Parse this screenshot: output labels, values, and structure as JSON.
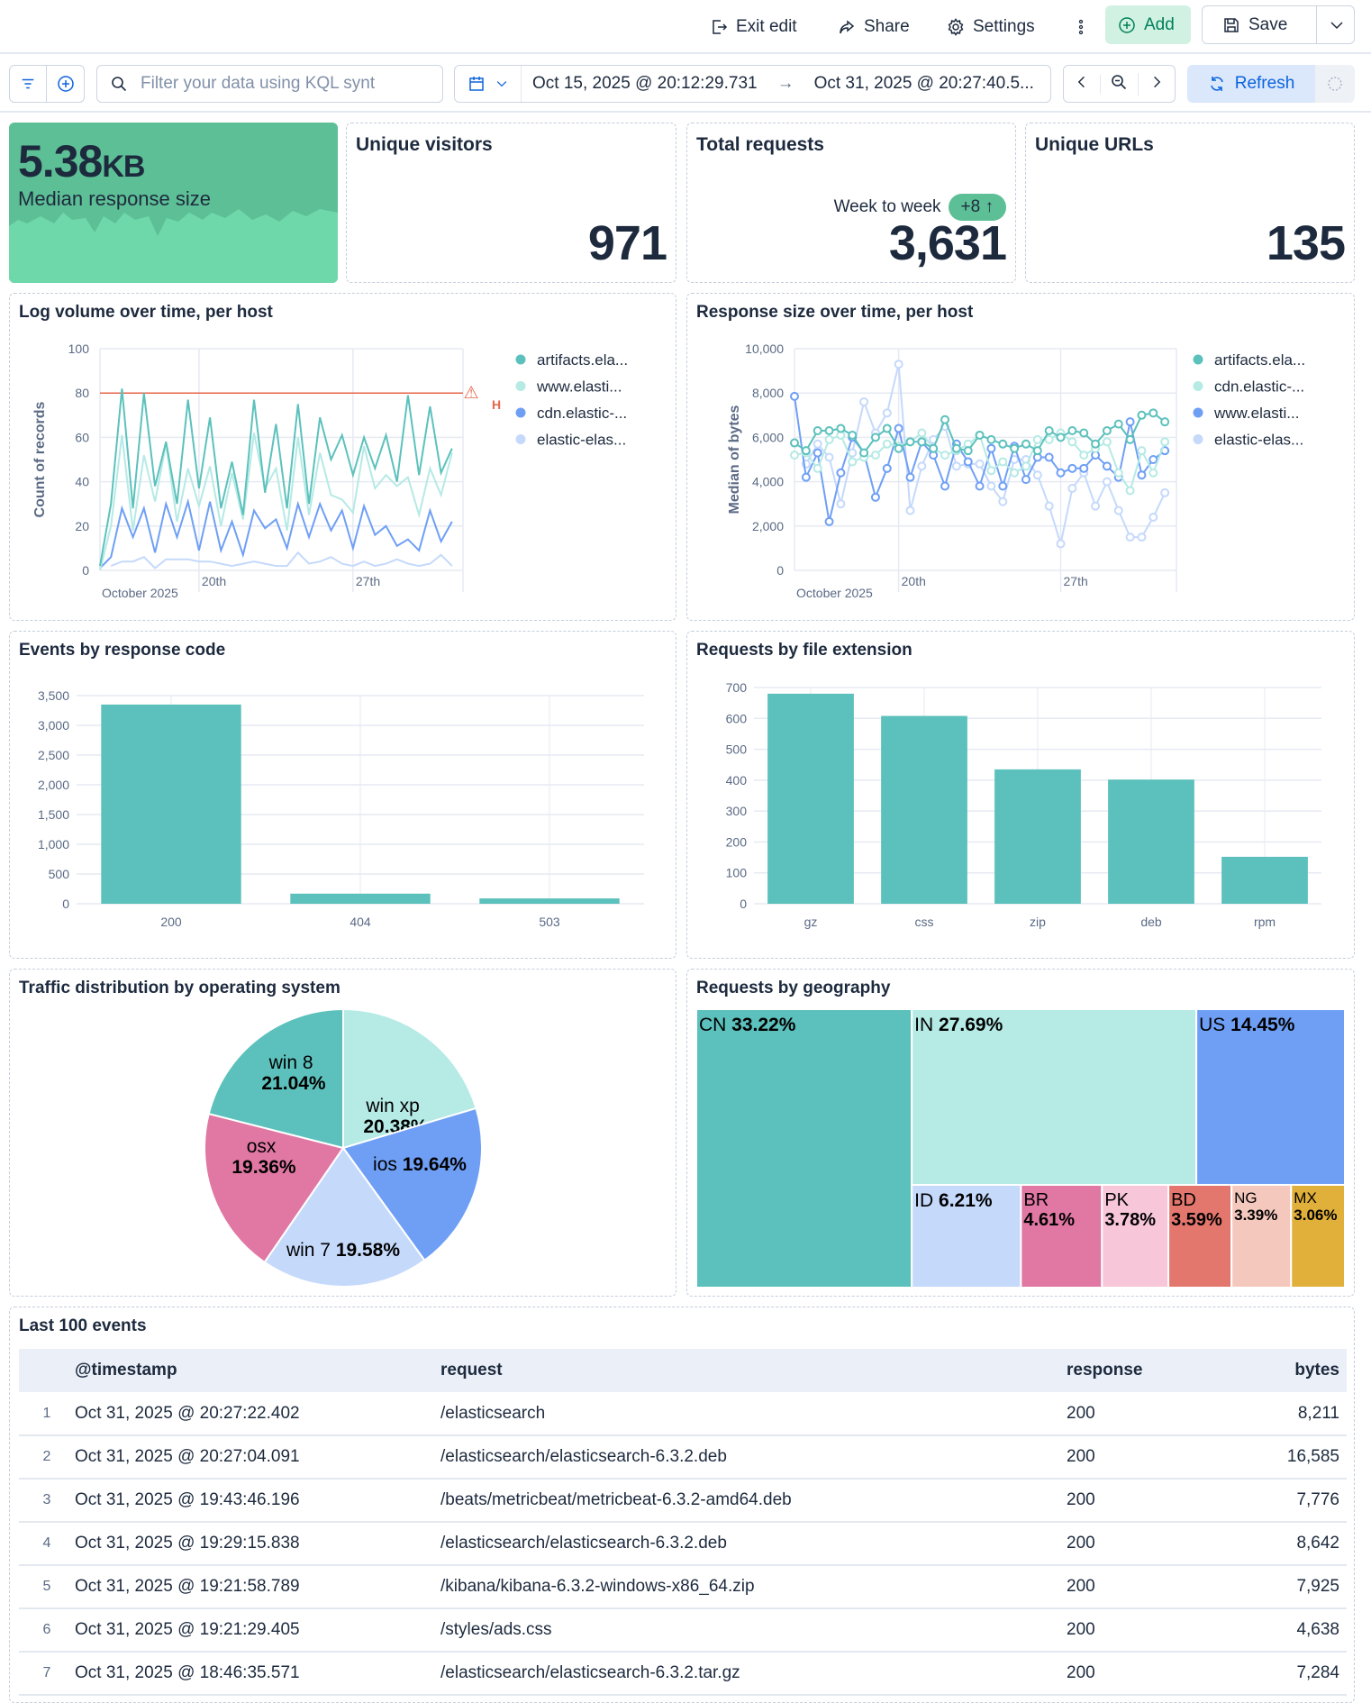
{
  "header": {
    "exit_edit": "Exit edit",
    "share": "Share",
    "settings": "Settings",
    "add": "Add",
    "save": "Save"
  },
  "filter_bar": {
    "query_placeholder": "Filter your data using KQL synt",
    "start": "Oct 15, 2025 @ 20:12:29.731",
    "end": "Oct 31, 2025 @ 20:27:40.5...",
    "refresh": "Refresh"
  },
  "metrics": {
    "median": {
      "value": "5.38",
      "unit": "KB",
      "label": "Median response size",
      "bg": "#5dbf95",
      "area": "#6fd8ab"
    },
    "visitors": {
      "title": "Unique visitors",
      "value": "971"
    },
    "requests": {
      "title": "Total requests",
      "trend_label": "Week to week",
      "trend_badge": "+8 ↑",
      "value": "3,631",
      "badge_color": "#5dbf95"
    },
    "urls": {
      "title": "Unique URLs",
      "value": "135"
    }
  },
  "panels": {
    "log_volume": "Log volume over time, per host",
    "response_size": "Response size over time, per host",
    "response_code": "Events by response code",
    "file_ext": "Requests by file extension",
    "os": "Traffic distribution by operating system",
    "geo": "Requests by geography",
    "events": "Last 100 events"
  },
  "chart_data": [
    {
      "type": "line",
      "title": "Log volume over time, per host",
      "ylabel": "Count of records",
      "ylim": [
        0,
        100
      ],
      "yticks": [
        "0",
        "20",
        "40",
        "60",
        "80",
        "100"
      ],
      "xticks": [
        "20th",
        "27th"
      ],
      "xsublabel": "October 2025",
      "threshold": 80,
      "threshold_color": "#e7664c",
      "x": [
        "2025-10-15 12:00",
        "2025-10-16 00:00",
        "2025-10-16 12:00",
        "2025-10-17 00:00",
        "2025-10-17 12:00",
        "2025-10-18 00:00",
        "2025-10-18 12:00",
        "2025-10-19 00:00",
        "2025-10-19 12:00",
        "2025-10-20 00:00",
        "2025-10-20 12:00",
        "2025-10-21 00:00",
        "2025-10-21 12:00",
        "2025-10-22 00:00",
        "2025-10-22 12:00",
        "2025-10-23 00:00",
        "2025-10-23 12:00",
        "2025-10-24 00:00",
        "2025-10-24 12:00",
        "2025-10-25 00:00",
        "2025-10-25 12:00",
        "2025-10-26 00:00",
        "2025-10-26 12:00",
        "2025-10-27 00:00",
        "2025-10-27 12:00",
        "2025-10-28 00:00",
        "2025-10-28 12:00",
        "2025-10-29 00:00",
        "2025-10-29 12:00",
        "2025-10-30 00:00",
        "2025-10-30 12:00",
        "2025-10-31 00:00",
        "2025-10-31 12:00"
      ],
      "series": [
        {
          "name": "artifacts.ela...",
          "color": "#5cc1bc",
          "values": [
            2,
            30,
            82,
            28,
            80,
            38,
            58,
            30,
            77,
            37,
            69,
            28,
            49,
            25,
            77,
            35,
            66,
            28,
            75,
            30,
            69,
            50,
            61,
            43,
            60,
            46,
            61,
            40,
            79,
            43,
            74,
            44,
            55
          ]
        },
        {
          "name": "www.elasti...",
          "color": "#b5eae5",
          "values": [
            0,
            20,
            61,
            18,
            52,
            31,
            57,
            22,
            46,
            29,
            47,
            20,
            44,
            23,
            62,
            37,
            46,
            18,
            60,
            25,
            53,
            34,
            32,
            26,
            56,
            37,
            43,
            38,
            42,
            25,
            46,
            34,
            53
          ]
        },
        {
          "name": "cdn.elastic-...",
          "color": "#6f9ff5",
          "values": [
            1,
            6,
            28,
            15,
            28,
            8,
            30,
            15,
            31,
            9,
            31,
            9,
            22,
            7,
            27,
            19,
            23,
            10,
            30,
            15,
            30,
            18,
            27,
            10,
            29,
            16,
            20,
            11,
            14,
            9,
            27,
            13,
            22
          ]
        },
        {
          "name": "elastic-elas...",
          "color": "#c5d9fb",
          "values": [
            null,
            2,
            4,
            4,
            6,
            1,
            5,
            5,
            5,
            4,
            4,
            3,
            2,
            3,
            4,
            3,
            2,
            2,
            8,
            3,
            4,
            6,
            3,
            2,
            4,
            2,
            3,
            5,
            3,
            2,
            3,
            7,
            2
          ]
        }
      ]
    },
    {
      "type": "line",
      "title": "Response size over time, per host",
      "ylabel": "Median of bytes",
      "ylim": [
        0,
        10000
      ],
      "yticks": [
        "0",
        "2,000",
        "4,000",
        "6,000",
        "8,000",
        "10,000"
      ],
      "xticks": [
        "20th",
        "27th"
      ],
      "xsublabel": "October 2025",
      "markers": true,
      "series": [
        {
          "name": "artifacts.ela...",
          "color": "#5cc1bc",
          "values": [
            5750,
            5400,
            6300,
            6300,
            6400,
            6100,
            5300,
            6000,
            6400,
            5500,
            5800,
            5800,
            5500,
            6800,
            5500,
            5400,
            6100,
            5900,
            5700,
            5500,
            5700,
            5400,
            6300,
            6000,
            6300,
            6200,
            5700,
            6300,
            6600,
            5900,
            7000,
            7100,
            6700
          ]
        },
        {
          "name": "cdn.elastic-...",
          "color": "#b5eae5",
          "values": [
            5200,
            5300,
            4600,
            5900,
            6100,
            4900,
            5100,
            5200,
            5700,
            5600,
            5800,
            6200,
            5500,
            5200,
            5400,
            5700,
            6100,
            4500,
            4900,
            4400,
            4700,
            5900,
            5900,
            6200,
            5800,
            5200,
            5500,
            5800,
            4400,
            3600,
            5400,
            4400,
            5800
          ]
        },
        {
          "name": "www.elasti...",
          "color": "#6f9ff5",
          "values": [
            7850,
            4200,
            5300,
            2200,
            4400,
            6000,
            5300,
            3300,
            4600,
            6400,
            4200,
            5800,
            5200,
            3800,
            5700,
            4900,
            3800,
            5500,
            3800,
            5600,
            4100,
            5100,
            5100,
            4400,
            4600,
            4600,
            5200,
            4700,
            4200,
            6700,
            4300,
            5000,
            5400
          ]
        },
        {
          "name": "elastic-elas...",
          "color": "#c5d9fb",
          "values": [
            null,
            4800,
            5700,
            5100,
            3000,
            5300,
            7600,
            6200,
            7100,
            9300,
            2700,
            4700,
            5900,
            6500,
            4700,
            4800,
            4800,
            3800,
            3100,
            5000,
            5000,
            4300,
            2900,
            1200,
            3700,
            4400,
            2900,
            4000,
            2700,
            1500,
            1500,
            2400,
            3500
          ]
        }
      ]
    },
    {
      "type": "bar",
      "title": "Events by response code",
      "categories": [
        "200",
        "404",
        "503"
      ],
      "values": [
        3350,
        170,
        90
      ],
      "ylim": [
        0,
        3500
      ],
      "yticks": [
        "0",
        "500",
        "1,000",
        "1,500",
        "2,000",
        "2,500",
        "3,000",
        "3,500"
      ],
      "color": "#5cc1bc"
    },
    {
      "type": "bar",
      "title": "Requests by file extension",
      "categories": [
        "gz",
        "css",
        "zip",
        "deb",
        "rpm"
      ],
      "values": [
        680,
        608,
        435,
        402,
        152
      ],
      "ylim": [
        0,
        700
      ],
      "yticks": [
        "0",
        "100",
        "200",
        "300",
        "400",
        "500",
        "600",
        "700"
      ],
      "color": "#5cc1bc"
    },
    {
      "type": "pie",
      "title": "Traffic distribution by operating system",
      "slices": [
        {
          "name": "win xp",
          "pct": "20.38%",
          "value": 20.38,
          "color": "#b5eae5"
        },
        {
          "name": "ios",
          "pct": "19.64%",
          "value": 19.64,
          "color": "#6f9ff5"
        },
        {
          "name": "win 7",
          "pct": "19.58%",
          "value": 19.58,
          "color": "#c5d9fb"
        },
        {
          "name": "osx",
          "pct": "19.36%",
          "value": 19.36,
          "color": "#e078a3"
        },
        {
          "name": "win 8",
          "pct": "21.04%",
          "value": 21.04,
          "color": "#5cc1bc"
        }
      ]
    },
    {
      "type": "treemap",
      "title": "Requests by geography",
      "cells": [
        {
          "name": "CN",
          "pct": "33.22%",
          "value": 33.22,
          "color": "#5cc1bc"
        },
        {
          "name": "IN",
          "pct": "27.69%",
          "value": 27.69,
          "color": "#b5eae5"
        },
        {
          "name": "US",
          "pct": "14.45%",
          "value": 14.45,
          "color": "#6f9ff5"
        },
        {
          "name": "ID",
          "pct": "6.21%",
          "value": 6.21,
          "color": "#c5d9fb"
        },
        {
          "name": "BR",
          "pct": "4.61%",
          "value": 4.61,
          "color": "#e078a3"
        },
        {
          "name": "PK",
          "pct": "3.78%",
          "value": 3.78,
          "color": "#f7c6d8"
        },
        {
          "name": "BD",
          "pct": "3.59%",
          "value": 3.59,
          "color": "#e4776d"
        },
        {
          "name": "NG",
          "pct": "3.39%",
          "value": 3.39,
          "color": "#f5c8be"
        },
        {
          "name": "MX",
          "pct": "3.06%",
          "value": 3.06,
          "color": "#e0b03a"
        }
      ]
    }
  ],
  "table": {
    "columns": [
      "@timestamp",
      "request",
      "response",
      "bytes"
    ],
    "rows": [
      [
        "1",
        "Oct 31, 2025 @ 20:27:22.402",
        "/elasticsearch",
        "200",
        "8,211"
      ],
      [
        "2",
        "Oct 31, 2025 @ 20:27:04.091",
        "/elasticsearch/elasticsearch-6.3.2.deb",
        "200",
        "16,585"
      ],
      [
        "3",
        "Oct 31, 2025 @ 19:43:46.196",
        "/beats/metricbeat/metricbeat-6.3.2-amd64.deb",
        "200",
        "7,776"
      ],
      [
        "4",
        "Oct 31, 2025 @ 19:29:15.838",
        "/elasticsearch/elasticsearch-6.3.2.deb",
        "200",
        "8,642"
      ],
      [
        "5",
        "Oct 31, 2025 @ 19:21:58.789",
        "/kibana/kibana-6.3.2-windows-x86_64.zip",
        "200",
        "7,925"
      ],
      [
        "6",
        "Oct 31, 2025 @ 19:21:29.405",
        "/styles/ads.css",
        "200",
        "4,638"
      ],
      [
        "7",
        "Oct 31, 2025 @ 18:46:35.571",
        "/elasticsearch/elasticsearch-6.3.2.tar.gz",
        "200",
        "7,284"
      ]
    ]
  }
}
